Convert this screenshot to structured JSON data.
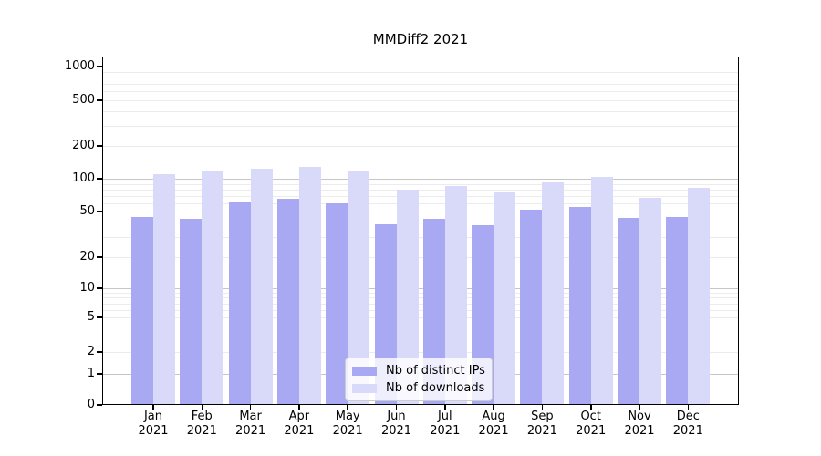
{
  "title": "MMDiff2 2021",
  "chart_data": {
    "type": "bar",
    "title": "MMDiff2 2021",
    "yscale": "log",
    "grid": true,
    "legend_position": "lower center",
    "year_label": "2021",
    "months": [
      "Jan",
      "Feb",
      "Mar",
      "Apr",
      "May",
      "Jun",
      "Jul",
      "Aug",
      "Sep",
      "Oct",
      "Nov",
      "Dec"
    ],
    "categories": [
      "Jan 2021",
      "Feb 2021",
      "Mar 2021",
      "Apr 2021",
      "May 2021",
      "Jun 2021",
      "Jul 2021",
      "Aug 2021",
      "Sep 2021",
      "Oct 2021",
      "Nov 2021",
      "Dec 2021"
    ],
    "series": [
      {
        "name": "Nb of distinct IPs",
        "color": "#a8a8f3",
        "values": [
          45,
          43,
          61,
          66,
          60,
          39,
          43,
          38,
          52,
          55,
          44,
          45
        ]
      },
      {
        "name": "Nb of downloads",
        "color": "#d9d9fa",
        "values": [
          110,
          120,
          124,
          128,
          116,
          80,
          86,
          77,
          93,
          104,
          67,
          82
        ]
      }
    ],
    "y_tick_values": [
      0,
      1,
      2,
      5,
      10,
      20,
      50,
      100,
      200,
      500,
      1000
    ],
    "y_tick_labels": [
      "0",
      "1",
      "2",
      "5",
      "10",
      "20",
      "50",
      "100",
      "200",
      "500",
      "1000"
    ],
    "ylim": [
      0,
      1200
    ],
    "colors": {
      "distinct_ips_bar": "#a8a8f3",
      "downloads_bar": "#d9d9fa",
      "major_grid": "#c6c6c6",
      "minor_grid": "#ececec",
      "axis": "#000000"
    }
  }
}
